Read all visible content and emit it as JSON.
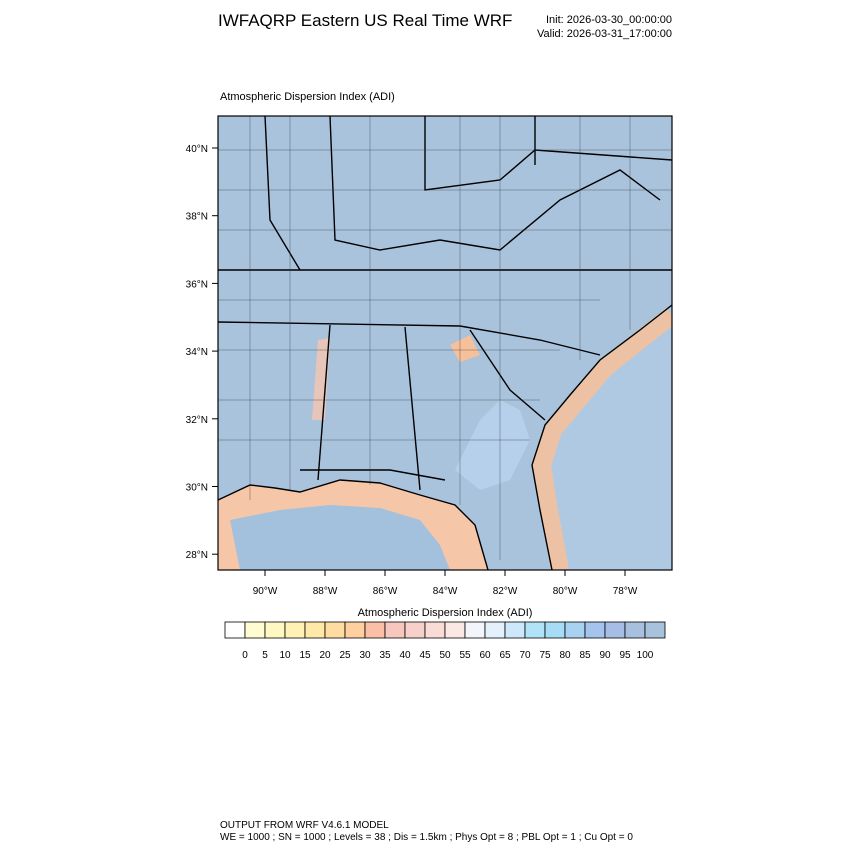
{
  "header": {
    "title": "IWFAQRP Eastern US Real Time WRF",
    "init": "Init: 2026-03-30_00:00:00",
    "valid": "Valid: 2026-03-31_17:00:00"
  },
  "map": {
    "subtitle": "Atmospheric Dispersion Index   (ADI)",
    "lat_ticks": [
      "40°N",
      "38°N",
      "36°N",
      "34°N",
      "32°N",
      "30°N",
      "28°N"
    ],
    "lon_ticks": [
      "90°W",
      "88°W",
      "86°W",
      "84°W",
      "82°W",
      "80°W",
      "78°W"
    ]
  },
  "colorbar": {
    "label": "Atmospheric Dispersion Index  (ADI)",
    "levels": [
      0,
      5,
      10,
      15,
      20,
      25,
      30,
      35,
      40,
      45,
      50,
      55,
      60,
      65,
      70,
      75,
      80,
      85,
      90,
      95,
      100
    ],
    "colors": [
      "#ffffff",
      "#fffcd2",
      "#fff8c2",
      "#fff2b4",
      "#ffe8a8",
      "#ffdca0",
      "#ffcfa0",
      "#fbbfa6",
      "#f7c6bc",
      "#f7d0ca",
      "#f9dcd6",
      "#fbe8e4",
      "#f4f4fc",
      "#e4f0fc",
      "#cce8fa",
      "#b0e2f8",
      "#a6dcf6",
      "#a8d2f2",
      "#a4c4ee",
      "#a6bee6",
      "#a8c0e0",
      "#a6c2dc"
    ]
  },
  "footer": {
    "line1": "OUTPUT FROM WRF V4.6.1 MODEL",
    "line2": "WE = 1000 ; SN = 1000 ; Levels = 38 ; Dis = 1.5km ; Phys Opt = 8 ; PBL Opt = 1 ; Cu Opt = 0"
  }
}
